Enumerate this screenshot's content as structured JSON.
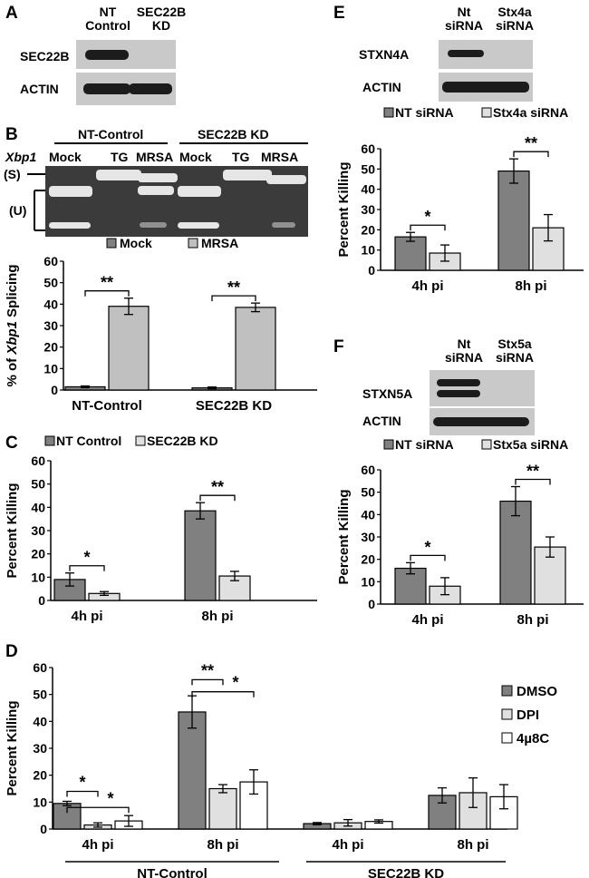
{
  "figure": {
    "panels": {
      "A": {
        "letter": "A",
        "col_nt": "NT\nControl",
        "col_kd": "SEC22B\nKD",
        "row_sec22b": "SEC22B",
        "row_actin": "ACTIN"
      },
      "B": {
        "letter": "B",
        "group1": "NT-Control",
        "group2": "SEC22B KD",
        "xbp1": "Xbp1",
        "lanes": [
          "Mock",
          "TG",
          "MRSA",
          "Mock",
          "TG",
          "MRSA"
        ],
        "s_marker": "(S)",
        "u_marker": "(U)"
      },
      "E": {
        "letter": "E",
        "col_nt": "Nt\nsiRNA",
        "col_kd": "Stx4a\nsiRNA",
        "row_target": "STXN4A",
        "row_actin": "ACTIN"
      },
      "F": {
        "letter": "F",
        "col_nt": "Nt\nsiRNA",
        "col_kd": "Stx5a\nsiRNA",
        "row_target": "STXN5A",
        "row_actin": "ACTIN"
      }
    }
  },
  "chart_data": [
    {
      "id": "B",
      "type": "bar",
      "ylabel": "% of Xbp1 Splicing",
      "ylim": [
        0,
        60
      ],
      "yticks": [
        0,
        10,
        20,
        30,
        40,
        50,
        60
      ],
      "categories": [
        "NT-Control",
        "SEC22B KD"
      ],
      "series": [
        {
          "name": "Mock",
          "color": "#808080",
          "values": [
            1.5,
            1.0
          ],
          "errors": [
            0.4,
            0.4
          ]
        },
        {
          "name": "MRSA",
          "color": "#c0c0c0",
          "values": [
            39,
            38.5
          ],
          "errors": [
            3.8,
            2.0
          ]
        }
      ],
      "significance": [
        {
          "group": 0,
          "label": "**"
        },
        {
          "group": 1,
          "label": "**"
        }
      ],
      "legend": "top"
    },
    {
      "id": "C",
      "letter": "C",
      "type": "bar",
      "ylabel": "Percent Killing",
      "ylim": [
        0,
        60
      ],
      "yticks": [
        0,
        10,
        20,
        30,
        40,
        50,
        60
      ],
      "categories": [
        "4h pi",
        "8h pi"
      ],
      "series": [
        {
          "name": "NT Control",
          "color": "#808080",
          "values": [
            9,
            38.5
          ],
          "errors": [
            2.8,
            3.5
          ]
        },
        {
          "name": "SEC22B KD",
          "color": "#e0e0e0",
          "values": [
            3,
            10.5
          ],
          "errors": [
            0.8,
            2.0
          ]
        }
      ],
      "significance": [
        {
          "group": 0,
          "label": "*"
        },
        {
          "group": 1,
          "label": "**"
        }
      ],
      "legend": "top"
    },
    {
      "id": "D",
      "letter": "D",
      "type": "bar",
      "ylabel": "Percent Killing",
      "ylim": [
        0,
        60
      ],
      "yticks": [
        0,
        10,
        20,
        30,
        40,
        50,
        60
      ],
      "categories": [
        "4h pi",
        "8h pi",
        "4h pi",
        "8h pi"
      ],
      "groups": [
        "NT-Control",
        "SEC22B KD"
      ],
      "series": [
        {
          "name": "DMSO",
          "color": "#808080",
          "values": [
            9.5,
            43.5,
            2.0,
            12.5
          ],
          "errors": [
            0.8,
            6.0,
            0.4,
            2.8
          ]
        },
        {
          "name": "DPI",
          "color": "#e0e0e0",
          "values": [
            1.5,
            15.0,
            2.3,
            13.5
          ],
          "errors": [
            0.8,
            1.5,
            1.2,
            5.5
          ]
        },
        {
          "name": "4µ8C",
          "color": "#ffffff",
          "values": [
            3.0,
            17.5,
            2.8,
            12.0
          ],
          "errors": [
            2.0,
            4.5,
            0.6,
            4.5
          ]
        }
      ],
      "significance": [
        {
          "label": "*"
        },
        {
          "label": "*"
        },
        {
          "label": "**"
        },
        {
          "label": "*"
        }
      ],
      "legend": "right"
    },
    {
      "id": "E",
      "type": "bar",
      "ylabel": "Percent Killing",
      "ylim": [
        0,
        60
      ],
      "yticks": [
        0,
        10,
        20,
        30,
        40,
        50,
        60
      ],
      "categories": [
        "4h pi",
        "8h pi"
      ],
      "series": [
        {
          "name": "NT siRNA",
          "color": "#808080",
          "values": [
            16.5,
            49
          ],
          "errors": [
            2.2,
            6.0
          ]
        },
        {
          "name": "Stx4a siRNA",
          "color": "#e0e0e0",
          "values": [
            8.5,
            21
          ],
          "errors": [
            4.0,
            6.5
          ]
        }
      ],
      "significance": [
        {
          "group": 0,
          "label": "*"
        },
        {
          "group": 1,
          "label": "**"
        }
      ],
      "legend": "top"
    },
    {
      "id": "F",
      "type": "bar",
      "ylabel": "Percent Killing",
      "ylim": [
        0,
        60
      ],
      "yticks": [
        0,
        10,
        20,
        30,
        40,
        50,
        60
      ],
      "categories": [
        "4h pi",
        "8h pi"
      ],
      "series": [
        {
          "name": "NT siRNA",
          "color": "#808080",
          "values": [
            16,
            46
          ],
          "errors": [
            2.5,
            6.5
          ]
        },
        {
          "name": "Stx5a siRNA",
          "color": "#e0e0e0",
          "values": [
            8,
            25.5
          ],
          "errors": [
            3.8,
            4.5
          ]
        }
      ],
      "significance": [
        {
          "group": 0,
          "label": "*"
        },
        {
          "group": 1,
          "label": "**"
        }
      ],
      "legend": "top"
    }
  ]
}
